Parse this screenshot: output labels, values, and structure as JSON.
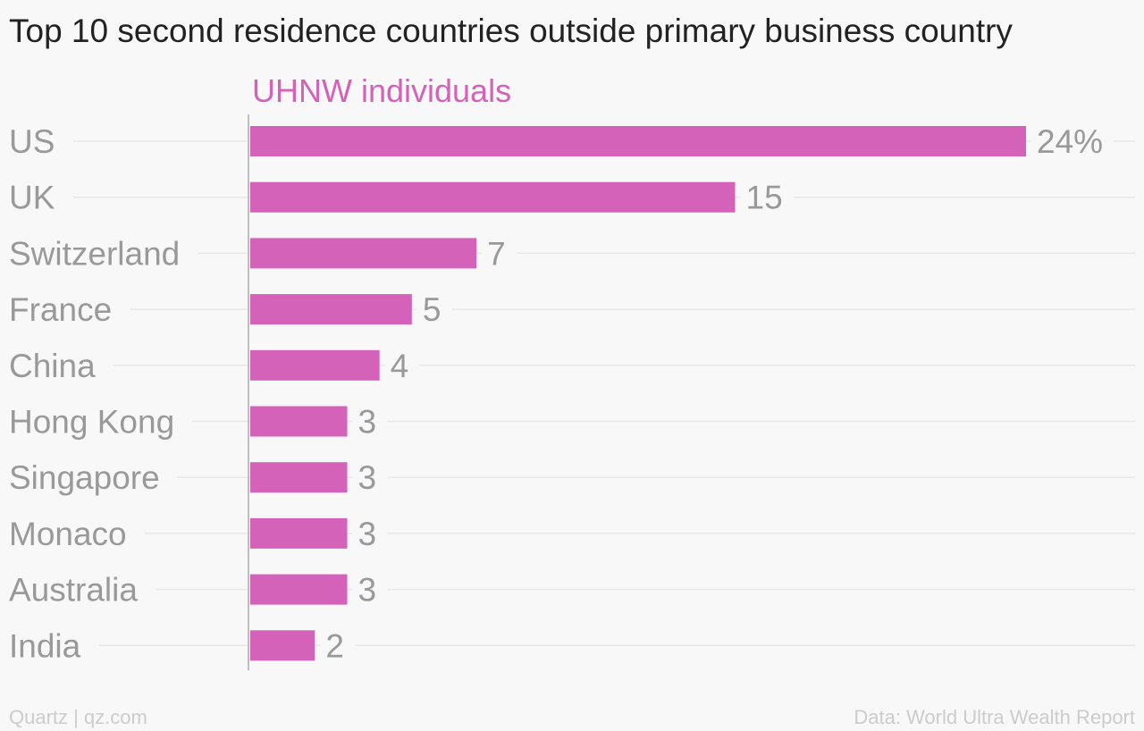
{
  "title": "Top 10 second residence countries outside primary business country",
  "footer": {
    "source_left": "Quartz | qz.com",
    "source_right": "Data: World Ultra Wealth Report"
  },
  "colors": {
    "bar": "#d462b8",
    "series_label": "#d462b8",
    "label_text": "#999999",
    "gridline": "#e8e8e8",
    "axis": "#aaaaaa"
  },
  "chart_data": {
    "type": "bar",
    "orientation": "horizontal",
    "categories": [
      "US",
      "UK",
      "Switzerland",
      "France",
      "China",
      "Hong Kong",
      "Singapore",
      "Monaco",
      "Australia",
      "India"
    ],
    "series": [
      {
        "name": "UHNW individuals",
        "values": [
          24,
          15,
          7,
          5,
          4,
          3,
          3,
          3,
          3,
          2
        ],
        "labels": [
          "24%",
          "15",
          "7",
          "5",
          "4",
          "3",
          "3",
          "3",
          "3",
          "2"
        ]
      }
    ],
    "xlim": [
      0,
      24
    ],
    "grid": true
  }
}
